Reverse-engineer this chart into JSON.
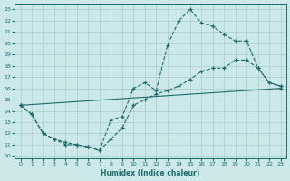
{
  "xlabel": "Humidex (Indice chaleur)",
  "bg_color": "#cce8e8",
  "grid_color": "#aacece",
  "line_color": "#1a6b6b",
  "xlim": [
    -0.5,
    23.5
  ],
  "ylim": [
    9.8,
    23.5
  ],
  "yticks": [
    10,
    11,
    12,
    13,
    14,
    15,
    16,
    17,
    18,
    19,
    20,
    21,
    22,
    23
  ],
  "xticks": [
    0,
    1,
    2,
    3,
    4,
    5,
    6,
    7,
    8,
    9,
    10,
    11,
    12,
    13,
    14,
    15,
    16,
    17,
    18,
    19,
    20,
    21,
    22,
    23
  ],
  "series": [
    {
      "x": [
        0,
        1,
        2,
        3,
        4,
        5,
        6,
        7,
        8,
        9,
        10,
        11,
        12,
        13,
        14,
        15,
        16,
        17,
        18,
        19,
        20,
        21,
        22,
        23
      ],
      "y": [
        14.5,
        13.7,
        12.0,
        11.5,
        11.0,
        11.0,
        10.8,
        10.5,
        13.2,
        13.5,
        16.0,
        16.5,
        15.8,
        19.8,
        22.0,
        23.0,
        21.8,
        21.5,
        20.8,
        20.2,
        20.2,
        17.8,
        16.5,
        16.2
      ],
      "linestyle": "--"
    },
    {
      "x": [
        0,
        1,
        2,
        3,
        4,
        5,
        6,
        7,
        8,
        9,
        10,
        11,
        12,
        13,
        14,
        15,
        16,
        17,
        18,
        19,
        20,
        21,
        22,
        23
      ],
      "y": [
        14.5,
        13.7,
        12.0,
        11.5,
        11.2,
        11.0,
        10.8,
        10.5,
        11.5,
        12.5,
        14.5,
        15.0,
        15.5,
        15.8,
        16.2,
        16.8,
        17.5,
        17.8,
        17.8,
        18.5,
        18.5,
        17.8,
        16.5,
        16.2
      ],
      "linestyle": "--"
    },
    {
      "x": [
        0,
        23
      ],
      "y": [
        14.5,
        16.0
      ],
      "linestyle": "-"
    }
  ]
}
